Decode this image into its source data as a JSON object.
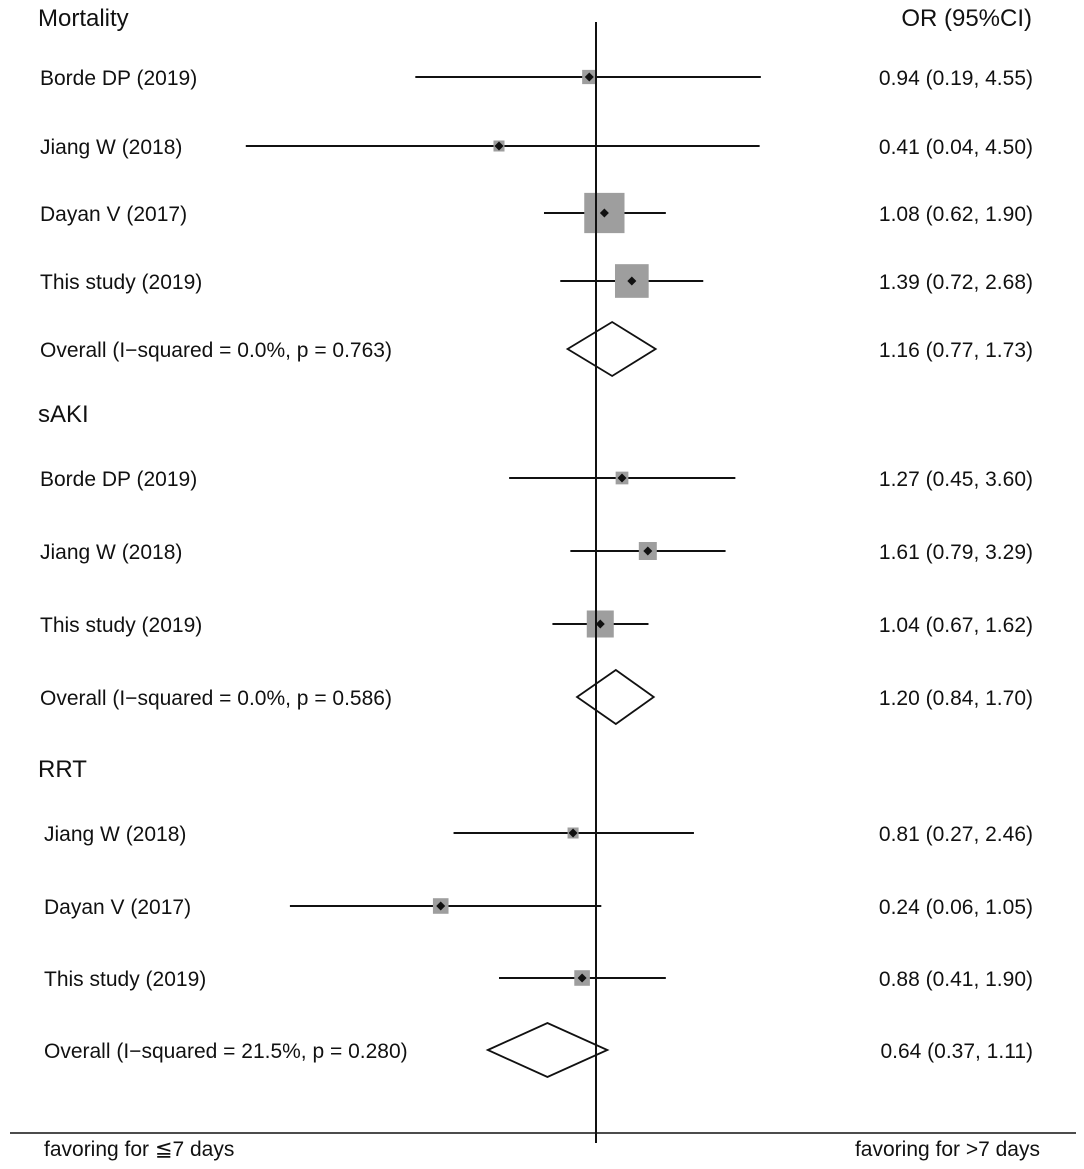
{
  "chart_data": {
    "type": "forest",
    "x_scale": "log",
    "xlim": [
      0.04,
      4.55
    ],
    "null_line": 1,
    "header_right": "OR (95%CI)",
    "footer_left": "favoring for ≦7 days",
    "footer_right": "favoring for >7 days",
    "colors": {
      "ink": "#111111",
      "box": "#9e9e9e"
    },
    "groups": [
      {
        "title": "Mortality",
        "rows": [
          {
            "study": "Borde DP (2019)",
            "or": 0.94,
            "lo": 0.19,
            "hi": 4.55,
            "weight": 2.5,
            "label": "0.94 (0.19, 4.55)"
          },
          {
            "study": "Jiang W (2018)",
            "or": 0.41,
            "lo": 0.04,
            "hi": 4.5,
            "weight": 1.5,
            "label": "0.41 (0.04, 4.50)"
          },
          {
            "study": "Dayan V (2017)",
            "or": 1.08,
            "lo": 0.62,
            "hi": 1.9,
            "weight": 20,
            "label": "1.08 (0.62, 1.90)"
          },
          {
            "study": "This study (2019)",
            "or": 1.39,
            "lo": 0.72,
            "hi": 2.68,
            "weight": 14,
            "label": "1.39 (0.72, 2.68)"
          }
        ],
        "overall": {
          "label_text": "Overall  (I−squared = 0.0%, p = 0.763)",
          "or": 1.16,
          "lo": 0.77,
          "hi": 1.73,
          "label": "1.16 (0.77, 1.73)"
        }
      },
      {
        "title": "sAKI",
        "rows": [
          {
            "study": "Borde DP (2019)",
            "or": 1.27,
            "lo": 0.45,
            "hi": 3.6,
            "weight": 2,
            "label": "1.27 (0.45, 3.60)"
          },
          {
            "study": "Jiang W (2018)",
            "or": 1.61,
            "lo": 0.79,
            "hi": 3.29,
            "weight": 4,
            "label": "1.61 (0.79, 3.29)"
          },
          {
            "study": "This study (2019)",
            "or": 1.04,
            "lo": 0.67,
            "hi": 1.62,
            "weight": 9,
            "label": "1.04 (0.67, 1.62)"
          }
        ],
        "overall": {
          "label_text": "Overall  (I−squared = 0.0%, p = 0.586)",
          "or": 1.2,
          "lo": 0.84,
          "hi": 1.7,
          "label": "1.20 (0.84, 1.70)"
        }
      },
      {
        "title": "RRT",
        "rows": [
          {
            "study": "Jiang W (2018)",
            "or": 0.81,
            "lo": 0.27,
            "hi": 2.46,
            "weight": 1.5,
            "label": "0.81 (0.27, 2.46)"
          },
          {
            "study": "Dayan V (2017)",
            "or": 0.24,
            "lo": 0.06,
            "hi": 1.05,
            "weight": 3,
            "label": "0.24 (0.06, 1.05)"
          },
          {
            "study": "This study (2019)",
            "or": 0.88,
            "lo": 0.41,
            "hi": 1.9,
            "weight": 3,
            "label": "0.88 (0.41, 1.90)"
          }
        ],
        "overall": {
          "label_text": "Overall  (I−squared = 21.5%, p = 0.280)",
          "or": 0.64,
          "lo": 0.37,
          "hi": 1.11,
          "label": "0.64 (0.37, 1.11)"
        }
      }
    ]
  }
}
